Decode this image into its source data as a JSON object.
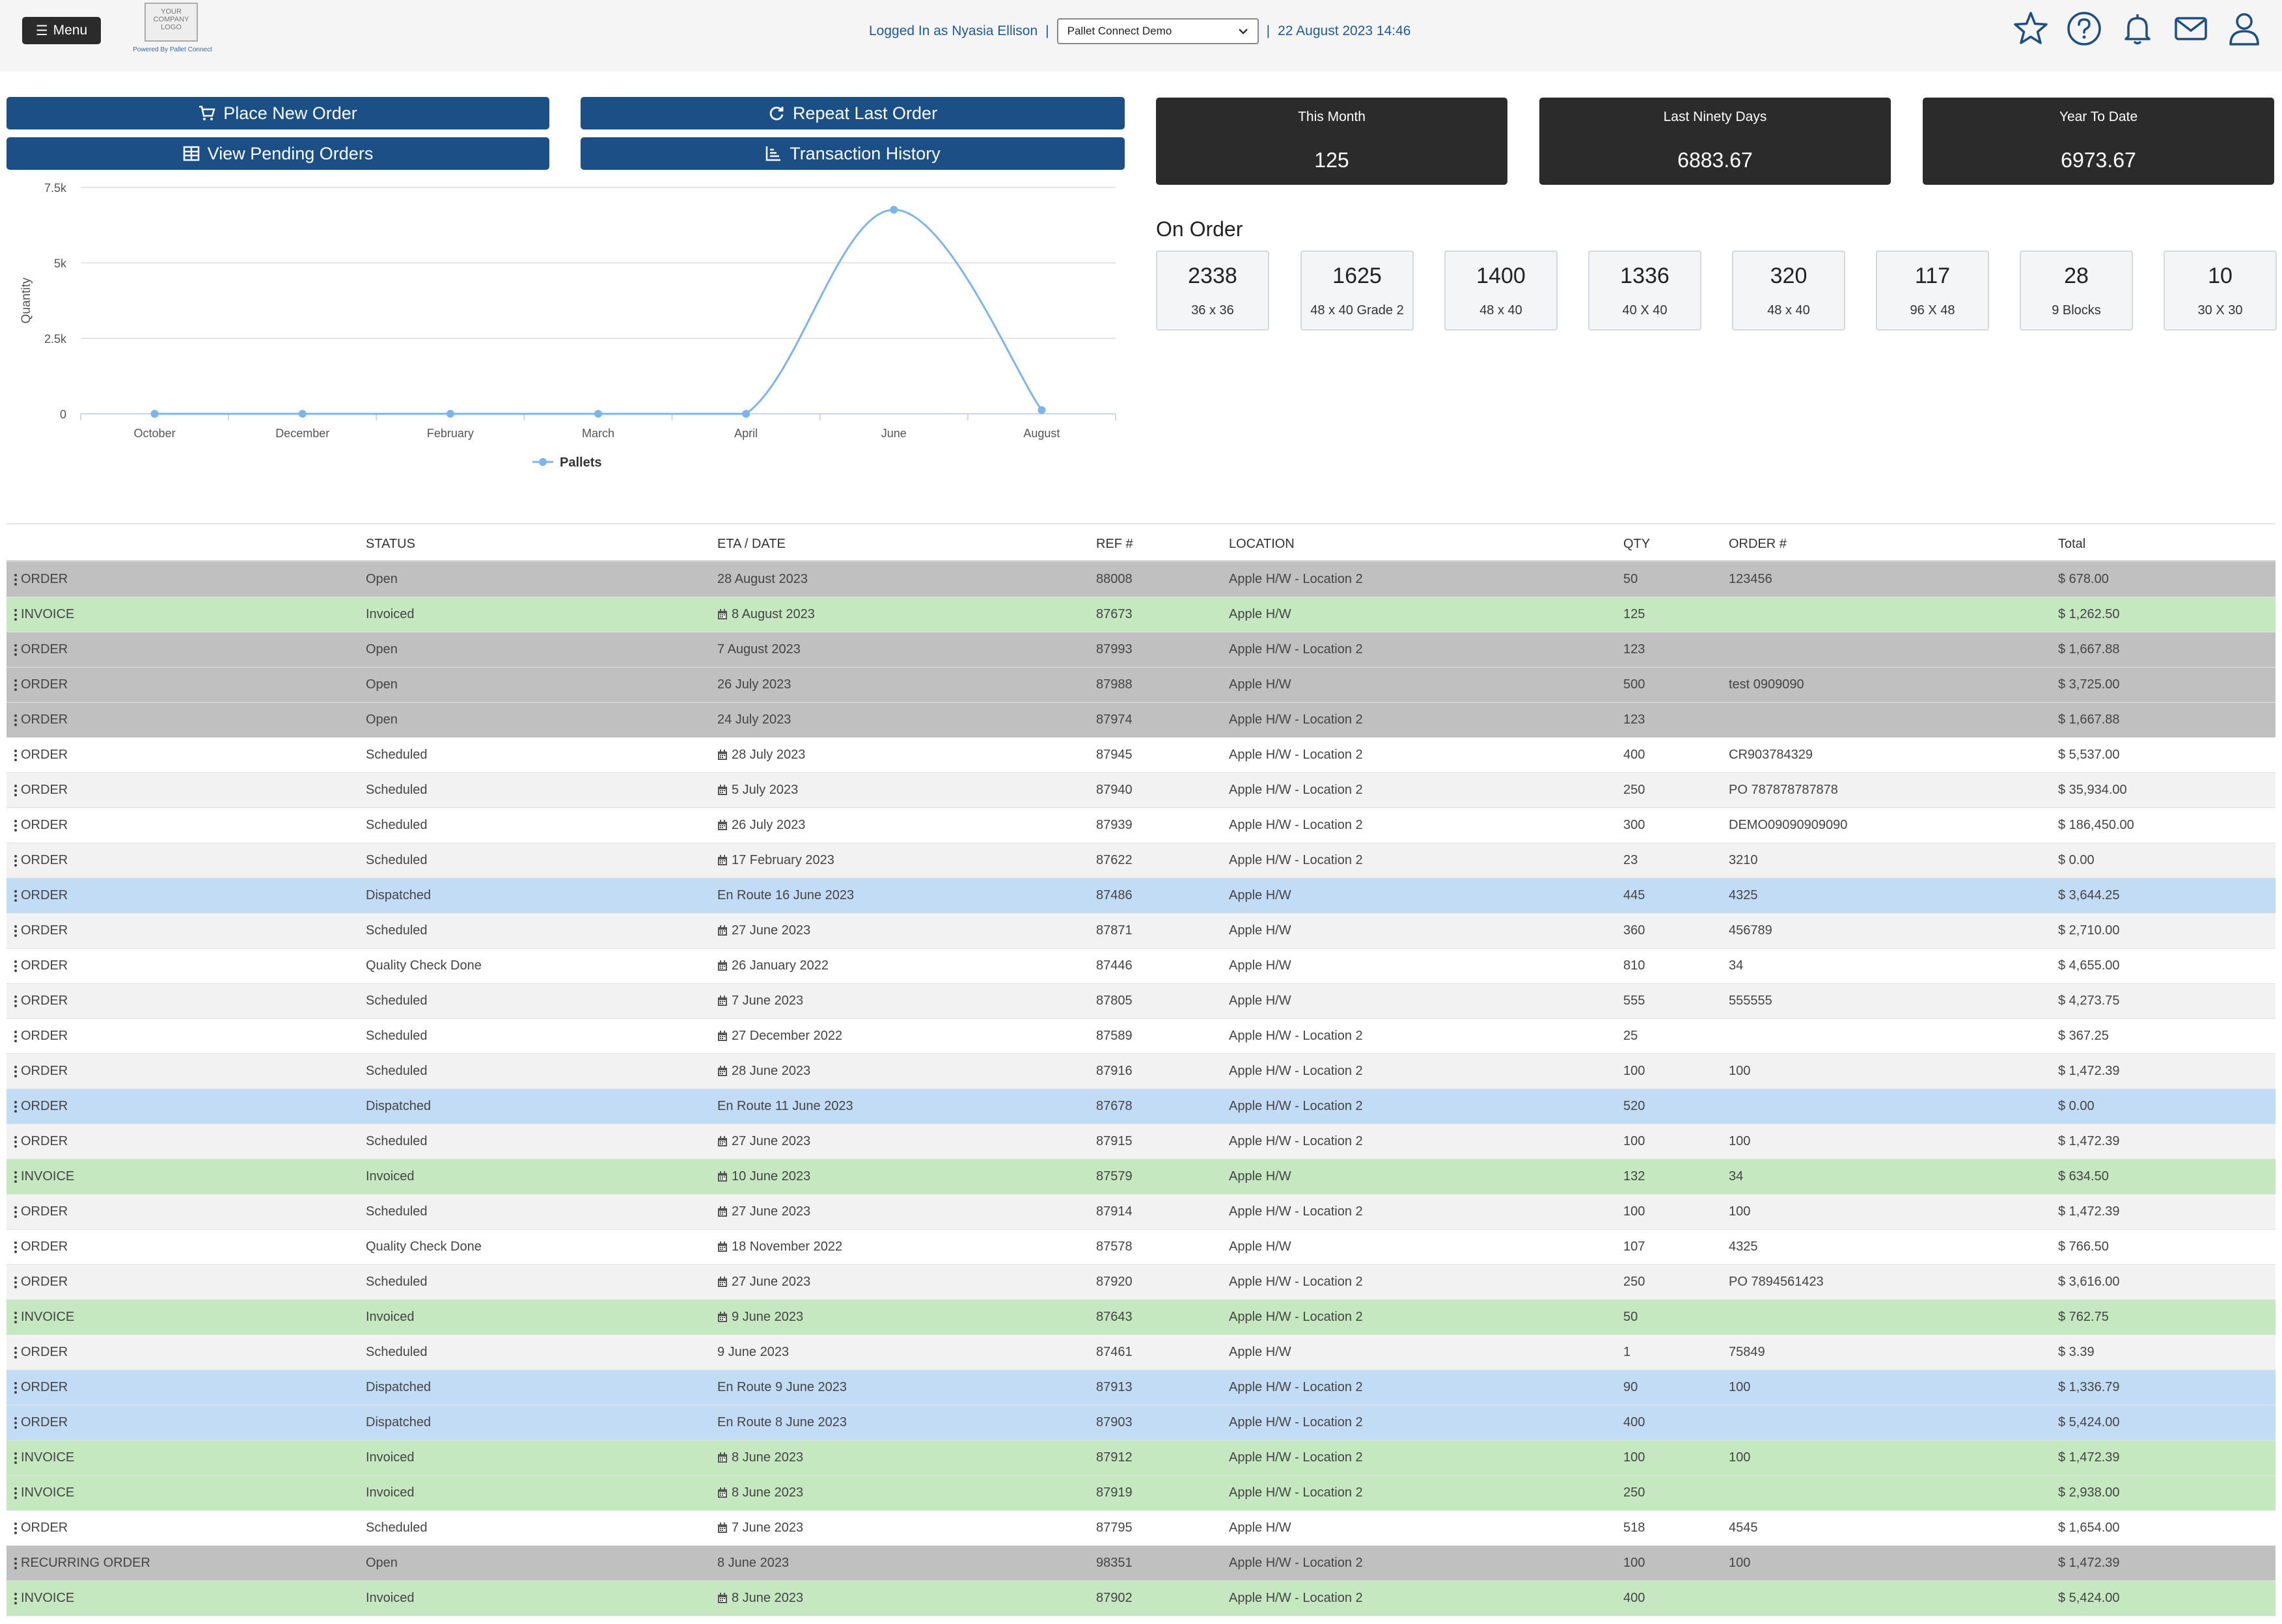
{
  "header": {
    "menu_label": "Menu",
    "logo_text": "YOUR COMPANY LOGO",
    "powered_by": "Powered By Pallet Connect",
    "logged_in": "Logged In as Nyasia Ellison",
    "separator": "|",
    "account": "Pallet Connect Demo",
    "datetime": "22 August 2023 14:46",
    "icons": [
      "star-icon",
      "help-icon",
      "bell-icon",
      "mail-icon",
      "user-icon"
    ]
  },
  "actions": {
    "place_new_order": "Place New Order",
    "repeat_last_order": "Repeat Last Order",
    "view_pending_orders": "View Pending Orders",
    "transaction_history": "Transaction History"
  },
  "stats": [
    {
      "label": "This Month",
      "value": "125"
    },
    {
      "label": "Last Ninety Days",
      "value": "6883.67"
    },
    {
      "label": "Year To Date",
      "value": "6973.67"
    }
  ],
  "chart_data": {
    "type": "line",
    "categories": [
      "October",
      "December",
      "February",
      "March",
      "April",
      "June",
      "August"
    ],
    "series": [
      {
        "name": "Pallets",
        "values": [
          0,
          0,
          0,
          0,
          0,
          6758,
          125
        ]
      }
    ],
    "ylabel": "Quantity",
    "yticks": [
      "0",
      "2.5k",
      "5k",
      "7.5k"
    ],
    "ylim": [
      0,
      7500
    ],
    "grid": true,
    "legend": "bottom",
    "color": "#7cb5ec"
  },
  "on_order": {
    "title": "On Order",
    "items": [
      {
        "count": "2338",
        "desc": "36 x 36"
      },
      {
        "count": "1625",
        "desc": "48 x 40 Grade 2"
      },
      {
        "count": "1400",
        "desc": "48 x 40"
      },
      {
        "count": "1336",
        "desc": "40 X 40"
      },
      {
        "count": "320",
        "desc": "48 x 40"
      },
      {
        "count": "117",
        "desc": "96 X 48"
      },
      {
        "count": "28",
        "desc": "9 Blocks"
      },
      {
        "count": "10",
        "desc": "30 X 30"
      }
    ]
  },
  "table": {
    "headers": {
      "status": "STATUS",
      "eta": "ETA / DATE",
      "ref": "REF #",
      "location": "LOCATION",
      "qty": "QTY",
      "order": "ORDER #",
      "total": "Total"
    },
    "rows": [
      {
        "type": "ORDER",
        "status": "Open",
        "eta": "28 August 2023",
        "cal": false,
        "ref": "88008",
        "location": "Apple H/W - Location 2",
        "qty": "50",
        "order": "123456",
        "total": "$ 678.00",
        "color": "gray"
      },
      {
        "type": "INVOICE",
        "status": "Invoiced",
        "eta": "8 August 2023",
        "cal": true,
        "ref": "87673",
        "location": "Apple H/W",
        "qty": "125",
        "order": "",
        "total": "$ 1,262.50",
        "color": "green"
      },
      {
        "type": "ORDER",
        "status": "Open",
        "eta": "7 August 2023",
        "cal": false,
        "ref": "87993",
        "location": "Apple H/W - Location 2",
        "qty": "123",
        "order": "",
        "total": "$ 1,667.88",
        "color": "gray"
      },
      {
        "type": "ORDER",
        "status": "Open",
        "eta": "26 July 2023",
        "cal": false,
        "ref": "87988",
        "location": "Apple H/W",
        "qty": "500",
        "order": "test 0909090",
        "total": "$ 3,725.00",
        "color": "gray"
      },
      {
        "type": "ORDER",
        "status": "Open",
        "eta": "24 July 2023",
        "cal": false,
        "ref": "87974",
        "location": "Apple H/W - Location 2",
        "qty": "123",
        "order": "",
        "total": "$ 1,667.88",
        "color": "gray"
      },
      {
        "type": "ORDER",
        "status": "Scheduled",
        "eta": "28 July 2023",
        "cal": true,
        "ref": "87945",
        "location": "Apple H/W - Location 2",
        "qty": "400",
        "order": "CR903784329",
        "total": "$ 5,537.00",
        "color": "white"
      },
      {
        "type": "ORDER",
        "status": "Scheduled",
        "eta": "5 July 2023",
        "cal": true,
        "ref": "87940",
        "location": "Apple H/W - Location 2",
        "qty": "250",
        "order": "PO 787878787878",
        "total": "$ 35,934.00",
        "color": "light"
      },
      {
        "type": "ORDER",
        "status": "Scheduled",
        "eta": "26 July 2023",
        "cal": true,
        "ref": "87939",
        "location": "Apple H/W - Location 2",
        "qty": "300",
        "order": "DEMO09090909090",
        "total": "$ 186,450.00",
        "color": "white"
      },
      {
        "type": "ORDER",
        "status": "Scheduled",
        "eta": "17 February 2023",
        "cal": true,
        "ref": "87622",
        "location": "Apple H/W - Location 2",
        "qty": "23",
        "order": "3210",
        "total": "$ 0.00",
        "color": "light"
      },
      {
        "type": "ORDER",
        "status": "Dispatched",
        "eta": "En Route 16 June 2023",
        "cal": false,
        "ref": "87486",
        "location": "Apple H/W",
        "qty": "445",
        "order": "4325",
        "total": "$ 3,644.25",
        "color": "blue"
      },
      {
        "type": "ORDER",
        "status": "Scheduled",
        "eta": "27 June 2023",
        "cal": true,
        "ref": "87871",
        "location": "Apple H/W",
        "qty": "360",
        "order": "456789",
        "total": "$ 2,710.00",
        "color": "light"
      },
      {
        "type": "ORDER",
        "status": "Quality Check Done",
        "eta": "26 January 2022",
        "cal": true,
        "ref": "87446",
        "location": "Apple H/W",
        "qty": "810",
        "order": "34",
        "total": "$ 4,655.00",
        "color": "white"
      },
      {
        "type": "ORDER",
        "status": "Scheduled",
        "eta": "7 June 2023",
        "cal": true,
        "ref": "87805",
        "location": "Apple H/W",
        "qty": "555",
        "order": "555555",
        "total": "$ 4,273.75",
        "color": "light"
      },
      {
        "type": "ORDER",
        "status": "Scheduled",
        "eta": "27 December 2022",
        "cal": true,
        "ref": "87589",
        "location": "Apple H/W - Location 2",
        "qty": "25",
        "order": "",
        "total": "$ 367.25",
        "color": "white"
      },
      {
        "type": "ORDER",
        "status": "Scheduled",
        "eta": "28 June 2023",
        "cal": true,
        "ref": "87916",
        "location": "Apple H/W - Location 2",
        "qty": "100",
        "order": "100",
        "total": "$ 1,472.39",
        "color": "light"
      },
      {
        "type": "ORDER",
        "status": "Dispatched",
        "eta": "En Route 11 June 2023",
        "cal": false,
        "ref": "87678",
        "location": "Apple H/W - Location 2",
        "qty": "520",
        "order": "",
        "total": "$ 0.00",
        "color": "blue"
      },
      {
        "type": "ORDER",
        "status": "Scheduled",
        "eta": "27 June 2023",
        "cal": true,
        "ref": "87915",
        "location": "Apple H/W - Location 2",
        "qty": "100",
        "order": "100",
        "total": "$ 1,472.39",
        "color": "light"
      },
      {
        "type": "INVOICE",
        "status": "Invoiced",
        "eta": "10 June 2023",
        "cal": true,
        "ref": "87579",
        "location": "Apple H/W",
        "qty": "132",
        "order": "34",
        "total": "$ 634.50",
        "color": "green"
      },
      {
        "type": "ORDER",
        "status": "Scheduled",
        "eta": "27 June 2023",
        "cal": true,
        "ref": "87914",
        "location": "Apple H/W - Location 2",
        "qty": "100",
        "order": "100",
        "total": "$ 1,472.39",
        "color": "light"
      },
      {
        "type": "ORDER",
        "status": "Quality Check Done",
        "eta": "18 November 2022",
        "cal": true,
        "ref": "87578",
        "location": "Apple H/W",
        "qty": "107",
        "order": "4325",
        "total": "$ 766.50",
        "color": "white"
      },
      {
        "type": "ORDER",
        "status": "Scheduled",
        "eta": "27 June 2023",
        "cal": true,
        "ref": "87920",
        "location": "Apple H/W - Location 2",
        "qty": "250",
        "order": "PO 7894561423",
        "total": "$ 3,616.00",
        "color": "light"
      },
      {
        "type": "INVOICE",
        "status": "Invoiced",
        "eta": "9 June 2023",
        "cal": true,
        "ref": "87643",
        "location": "Apple H/W - Location 2",
        "qty": "50",
        "order": "",
        "total": "$ 762.75",
        "color": "green"
      },
      {
        "type": "ORDER",
        "status": "Scheduled",
        "eta": "9 June 2023",
        "cal": false,
        "ref": "87461",
        "location": "Apple H/W",
        "qty": "1",
        "order": "75849",
        "total": "$ 3.39",
        "color": "light"
      },
      {
        "type": "ORDER",
        "status": "Dispatched",
        "eta": "En Route 9 June 2023",
        "cal": false,
        "ref": "87913",
        "location": "Apple H/W - Location 2",
        "qty": "90",
        "order": "100",
        "total": "$ 1,336.79",
        "color": "blue"
      },
      {
        "type": "ORDER",
        "status": "Dispatched",
        "eta": "En Route 8 June 2023",
        "cal": false,
        "ref": "87903",
        "location": "Apple H/W - Location 2",
        "qty": "400",
        "order": "",
        "total": "$ 5,424.00",
        "color": "blue"
      },
      {
        "type": "INVOICE",
        "status": "Invoiced",
        "eta": "8 June 2023",
        "cal": true,
        "ref": "87912",
        "location": "Apple H/W - Location 2",
        "qty": "100",
        "order": "100",
        "total": "$ 1,472.39",
        "color": "green"
      },
      {
        "type": "INVOICE",
        "status": "Invoiced",
        "eta": "8 June 2023",
        "cal": true,
        "ref": "87919",
        "location": "Apple H/W - Location 2",
        "qty": "250",
        "order": "",
        "total": "$ 2,938.00",
        "color": "green"
      },
      {
        "type": "ORDER",
        "status": "Scheduled",
        "eta": "7 June 2023",
        "cal": true,
        "ref": "87795",
        "location": "Apple H/W",
        "qty": "518",
        "order": "4545",
        "total": "$ 1,654.00",
        "color": "white"
      },
      {
        "type": "RECURRING ORDER",
        "status": "Open",
        "eta": "8 June 2023",
        "cal": false,
        "ref": "98351",
        "location": "Apple H/W - Location 2",
        "qty": "100",
        "order": "100",
        "total": "$ 1,472.39",
        "color": "gray"
      },
      {
        "type": "INVOICE",
        "status": "Invoiced",
        "eta": "8 June 2023",
        "cal": true,
        "ref": "87902",
        "location": "Apple H/W - Location 2",
        "qty": "400",
        "order": "",
        "total": "$ 5,424.00",
        "color": "green"
      }
    ]
  }
}
